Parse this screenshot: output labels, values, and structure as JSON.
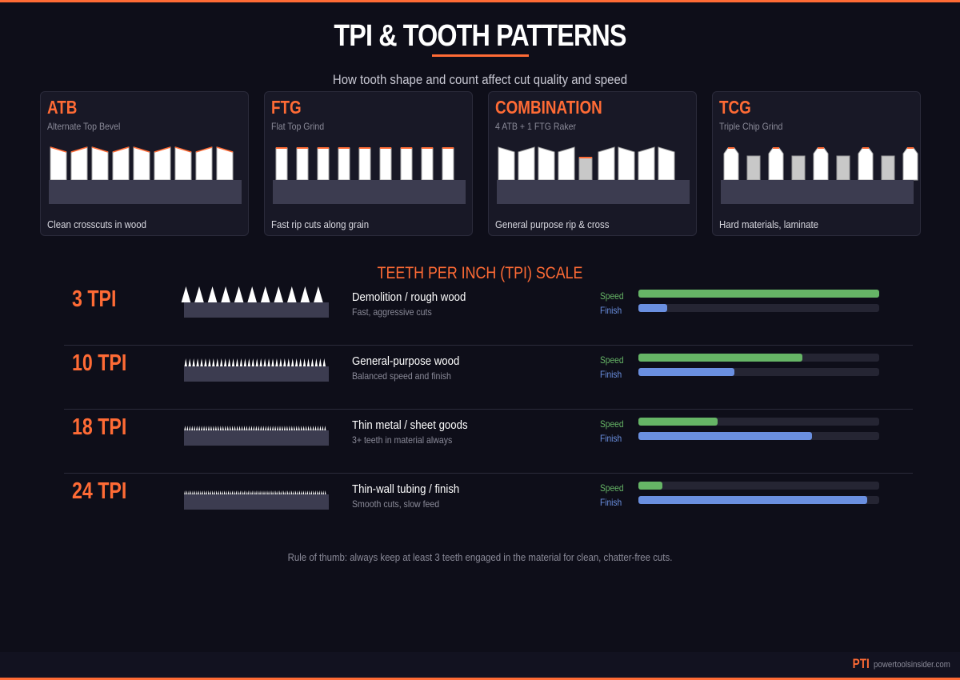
{
  "header": {
    "title": "TPI & TOOTH PATTERNS",
    "subtitle": "How tooth shape and count affect cut quality and speed"
  },
  "patterns": [
    {
      "name": "ATB",
      "subtitle": "Alternate Top Bevel",
      "use": "Clean crosscuts in wood",
      "shape": "atb"
    },
    {
      "name": "FTG",
      "subtitle": "Flat Top Grind",
      "use": "Fast rip cuts along grain",
      "shape": "ftg"
    },
    {
      "name": "COMBINATION",
      "subtitle": "4 ATB + 1 FTG Raker",
      "use": "General purpose rip & cross",
      "shape": "combo"
    },
    {
      "name": "TCG",
      "subtitle": "Triple Chip Grind",
      "use": "Hard materials, laminate",
      "shape": "tcg"
    }
  ],
  "tpi_section": {
    "title": "TEETH PER INCH (TPI) SCALE",
    "speed_label": "Speed",
    "finish_label": "Finish"
  },
  "tpi_rows": [
    {
      "label": "3 TPI",
      "tpi": 3,
      "title": "Demolition / rough wood",
      "desc": "Fast, aggressive cuts",
      "speed": 100,
      "finish": 12
    },
    {
      "label": "10 TPI",
      "tpi": 10,
      "title": "General-purpose wood",
      "desc": "Balanced speed and finish",
      "speed": 68,
      "finish": 40
    },
    {
      "label": "18 TPI",
      "tpi": 18,
      "title": "Thin metal / sheet goods",
      "desc": "3+ teeth in material always",
      "speed": 33,
      "finish": 72
    },
    {
      "label": "24 TPI",
      "tpi": 24,
      "title": "Thin-wall tubing / finish",
      "desc": "Smooth cuts, slow feed",
      "speed": 10,
      "finish": 95
    }
  ],
  "note": "Rule of thumb: always keep at least 3 teeth engaged in the material for clean, chatter-free cuts.",
  "footer": {
    "brand": "PTI",
    "site": "powertoolsinsider.com"
  },
  "colors": {
    "accent": "#ff6b35",
    "speed": "#66b566",
    "finish": "#6a8fe0",
    "blade": "#3c3c50"
  }
}
